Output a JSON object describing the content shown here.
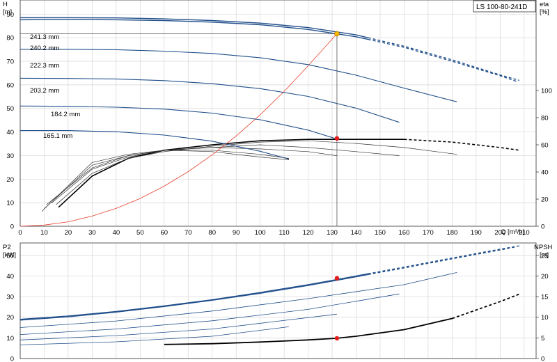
{
  "chart_data": [
    {
      "type": "line",
      "id": "head-eta",
      "title": "LS 100-80-241D",
      "x_axis": {
        "label": "Q [m³/h]",
        "range": [
          0,
          215
        ],
        "ticks": [
          0,
          10,
          20,
          30,
          40,
          50,
          60,
          70,
          80,
          90,
          100,
          110,
          120,
          130,
          140,
          150,
          160,
          170,
          180,
          190,
          200,
          210
        ]
      },
      "y_left": {
        "label_top": "H",
        "label_unit": "[m]",
        "range": [
          0,
          96
        ],
        "ticks": [
          0,
          10,
          20,
          30,
          40,
          50,
          60,
          70,
          80,
          90
        ]
      },
      "y_right": {
        "label_top": "eta",
        "label_unit": "[%]",
        "range": [
          0,
          166.7
        ],
        "ticks": [
          0,
          20,
          40,
          60,
          80,
          100
        ]
      },
      "grid": true,
      "head_curves": [
        {
          "name": "241.3 mm",
          "x": [
            0,
            20,
            40,
            60,
            80,
            100,
            120,
            140,
            160,
            180,
            200,
            208
          ],
          "y": [
            88.5,
            88.5,
            88.4,
            88.0,
            87.3,
            86.2,
            84.3,
            81.2,
            76.4,
            70.6,
            64.2,
            61.9
          ],
          "dashed_from": 145
        },
        {
          "name": "240.2 mm",
          "x": [
            0,
            20,
            40,
            60,
            80,
            100,
            120,
            140,
            160,
            180,
            200,
            207
          ],
          "y": [
            87.6,
            87.7,
            87.6,
            87.3,
            86.6,
            85.5,
            83.5,
            80.4,
            75.9,
            70.0,
            63.9,
            61.4
          ],
          "dashed_from": 145
        },
        {
          "name": "222.3 mm",
          "x": [
            0,
            20,
            40,
            60,
            80,
            100,
            120,
            140,
            160,
            182
          ],
          "y": [
            75.1,
            75.1,
            74.9,
            74.3,
            73.3,
            71.5,
            68.6,
            64.1,
            58.6,
            52.8
          ]
        },
        {
          "name": "203.2 mm",
          "x": [
            0,
            20,
            40,
            60,
            80,
            100,
            120,
            140,
            158
          ],
          "y": [
            62.8,
            62.7,
            62.5,
            61.8,
            60.5,
            58.4,
            55.1,
            50.1,
            44.1
          ]
        },
        {
          "name": "184.2 mm",
          "x": [
            0,
            20,
            40,
            60,
            80,
            100,
            120,
            132
          ],
          "y": [
            51.0,
            50.9,
            50.5,
            49.7,
            48.0,
            45.2,
            40.8,
            37.0
          ]
        },
        {
          "name": "165.1 mm",
          "x": [
            0,
            20,
            40,
            60,
            80,
            100,
            112
          ],
          "y": [
            40.6,
            40.6,
            40.1,
            38.7,
            36.1,
            31.8,
            28.5
          ]
        }
      ],
      "system_curve": {
        "x": [
          0,
          10,
          20,
          30,
          40,
          50,
          60,
          70,
          80,
          90,
          100,
          110,
          120,
          132
        ],
        "y": [
          0,
          0.5,
          1.9,
          4.3,
          7.6,
          11.8,
          17.0,
          23.2,
          30.3,
          38.3,
          47.3,
          57.2,
          68.1,
          81.7
        ]
      },
      "eta_curves": [
        {
          "x": [
            16,
            30,
            45,
            60,
            80,
            100,
            120,
            140,
            160,
            180,
            200,
            208
          ],
          "y": [
            14,
            37,
            50,
            56,
            60,
            63,
            64,
            64,
            64,
            62,
            58,
            56
          ],
          "dashed_from": 160
        },
        {
          "x": [
            15,
            30,
            45,
            60,
            80,
            100,
            120,
            140,
            160,
            182
          ],
          "y": [
            16,
            39,
            50,
            55,
            59,
            62,
            63,
            61,
            58,
            53
          ]
        },
        {
          "x": [
            13,
            30,
            45,
            60,
            80,
            100,
            120,
            140,
            158
          ],
          "y": [
            17,
            42,
            51,
            56,
            58,
            60,
            58,
            55,
            52
          ]
        },
        {
          "x": [
            11,
            30,
            45,
            60,
            80,
            100,
            120,
            132
          ],
          "y": [
            16,
            43,
            52,
            56,
            58,
            57,
            55,
            52
          ]
        },
        {
          "x": [
            10,
            30,
            45,
            60,
            80,
            100,
            112
          ],
          "y": [
            13,
            45,
            52,
            56,
            56,
            53,
            50
          ]
        },
        {
          "x": [
            9,
            30,
            45,
            60,
            80,
            100,
            112
          ],
          "y": [
            11,
            47,
            53,
            56,
            55,
            51,
            49
          ]
        }
      ],
      "duty_point": {
        "q": 132,
        "h": 81.7
      },
      "eta_point": {
        "q": 132,
        "eta": 64.7
      }
    },
    {
      "type": "line",
      "id": "power-npsh",
      "x_axis": {
        "range": [
          0,
          215
        ]
      },
      "y_left": {
        "label_top": "P2",
        "label_unit": "[kW]",
        "range": [
          0,
          56
        ],
        "ticks": [
          0,
          10,
          20,
          30,
          40,
          50
        ]
      },
      "y_right": {
        "label_top": "NPSH",
        "label_unit": "[m]",
        "range": [
          0,
          28
        ],
        "ticks": [
          0,
          5,
          10,
          15,
          20,
          25
        ]
      },
      "grid": true,
      "power_curves": [
        {
          "x": [
            0,
            20,
            40,
            60,
            80,
            100,
            120,
            140,
            160,
            180,
            200,
            208
          ],
          "y": [
            19.0,
            20.6,
            22.8,
            25.5,
            28.5,
            32.0,
            35.8,
            40.0,
            44.3,
            48.7,
            53.0,
            54.6
          ],
          "dashed_from": 145
        },
        {
          "x": [
            0,
            20,
            40,
            60,
            80,
            100,
            120,
            140,
            160,
            180,
            200,
            207
          ],
          "y": [
            18.6,
            20.2,
            22.5,
            25.2,
            28.2,
            31.6,
            35.4,
            39.6,
            43.9,
            48.3,
            52.6,
            54.2
          ],
          "dashed_from": 145
        },
        {
          "x": [
            0,
            40,
            80,
            120,
            160,
            182
          ],
          "y": [
            15.0,
            18.2,
            23.0,
            29.0,
            35.8,
            41.7
          ]
        },
        {
          "x": [
            0,
            40,
            80,
            120,
            158
          ],
          "y": [
            11.6,
            14.3,
            18.3,
            23.8,
            31.3
          ]
        },
        {
          "x": [
            0,
            40,
            80,
            132
          ],
          "y": [
            9.0,
            11.1,
            14.3,
            21.5
          ]
        },
        {
          "x": [
            0,
            40,
            80,
            112
          ],
          "y": [
            6.6,
            8.1,
            10.8,
            15.4
          ]
        }
      ],
      "npsh_curve": {
        "x": [
          60,
          80,
          100,
          120,
          132,
          140,
          160,
          180,
          200,
          208
        ],
        "y": [
          3.4,
          3.6,
          4.0,
          4.5,
          4.9,
          5.4,
          7.0,
          9.7,
          13.8,
          15.6
        ],
        "dashed_from": 180
      },
      "power_point": {
        "q": 132,
        "p": 38.9
      },
      "npsh_point": {
        "q": 132,
        "npsh": 4.9
      }
    }
  ]
}
